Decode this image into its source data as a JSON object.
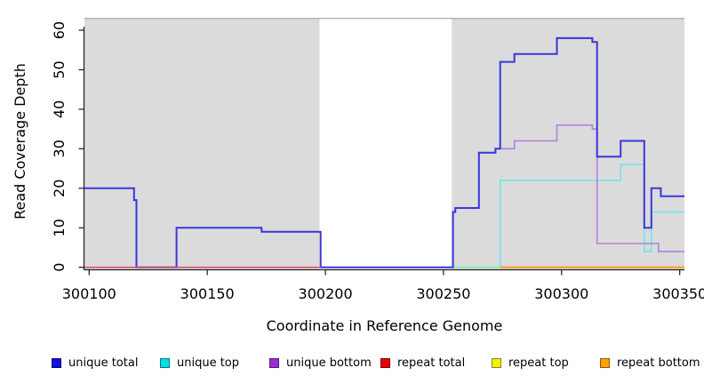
{
  "chart_data": {
    "type": "line",
    "subtype": "step",
    "title": "",
    "xlabel": "Coordinate in Reference Genome",
    "ylabel": "Read Coverage Depth",
    "xlim": [
      300098,
      300352
    ],
    "ylim": [
      0,
      63
    ],
    "x_ticks": [
      300100,
      300150,
      300200,
      300250,
      300300,
      300350
    ],
    "x_tick_labels": [
      "300100",
      "300150",
      "300200",
      "300250",
      "300300",
      "300350"
    ],
    "y_ticks": [
      0,
      10,
      20,
      30,
      40,
      50,
      60
    ],
    "y_tick_labels": [
      "0",
      "10",
      "20",
      "30",
      "40",
      "50",
      "60"
    ],
    "grid": false,
    "legend_position": "bottom",
    "shaded_regions": [
      {
        "name": "shaded-region-left",
        "x0": 300098,
        "x1": 300197.5,
        "color": "#dbdbdb"
      },
      {
        "name": "shaded-region-right",
        "x0": 300253.5,
        "x1": 300352,
        "color": "#dbdbdb"
      }
    ],
    "series": [
      {
        "name": "unique total",
        "color": "#3a35dc",
        "legend_color": "#1010e0",
        "line_width": 2,
        "points": [
          [
            300098,
            20
          ],
          [
            300119,
            17
          ],
          [
            300120,
            0
          ],
          [
            300137,
            10
          ],
          [
            300173,
            9
          ],
          [
            300198,
            0
          ],
          [
            300254,
            14
          ],
          [
            300255,
            15
          ],
          [
            300265,
            29
          ],
          [
            300272,
            30
          ],
          [
            300274,
            52
          ],
          [
            300280,
            54
          ],
          [
            300298,
            58
          ],
          [
            300313,
            57
          ],
          [
            300315,
            28
          ],
          [
            300325,
            32
          ],
          [
            300335,
            10
          ],
          [
            300338,
            20
          ],
          [
            300342,
            18
          ],
          [
            300352,
            18
          ]
        ]
      },
      {
        "name": "unique top",
        "color": "#6fe6ea",
        "legend_color": "#00dfe6",
        "line_width": 1.6,
        "points": [
          [
            300254,
            0
          ],
          [
            300274,
            22
          ],
          [
            300325,
            26
          ],
          [
            300335,
            4
          ],
          [
            300338,
            14
          ],
          [
            300352,
            14
          ]
        ]
      },
      {
        "name": "unique bottom",
        "color": "#b17fdd",
        "legend_color": "#9a2bd0",
        "line_width": 1.6,
        "points": [
          [
            300272,
            30
          ],
          [
            300280,
            32
          ],
          [
            300298,
            36
          ],
          [
            300313,
            35
          ],
          [
            300315,
            6
          ],
          [
            300341,
            4
          ],
          [
            300352,
            4
          ]
        ]
      },
      {
        "name": "repeat total",
        "color": "#d9485f",
        "legend_color": "#e60000",
        "line_width": 1.5,
        "points": [
          [
            300098,
            0
          ],
          [
            300198,
            0
          ]
        ]
      },
      {
        "name": "repeat top",
        "color": "#ecec4a",
        "legend_color": "#f2f200",
        "line_width": 2.4,
        "points": [
          [
            300254,
            0
          ],
          [
            300274,
            0
          ]
        ]
      },
      {
        "name": "repeat bottom",
        "color": "#ff9e1b",
        "legend_color": "#ffa200",
        "line_width": 2,
        "points": [
          [
            300274,
            0
          ],
          [
            300352,
            0
          ]
        ]
      }
    ],
    "draw_order": [
      "repeat top",
      "unique top",
      "unique bottom",
      "unique total",
      "repeat total",
      "repeat bottom"
    ]
  }
}
